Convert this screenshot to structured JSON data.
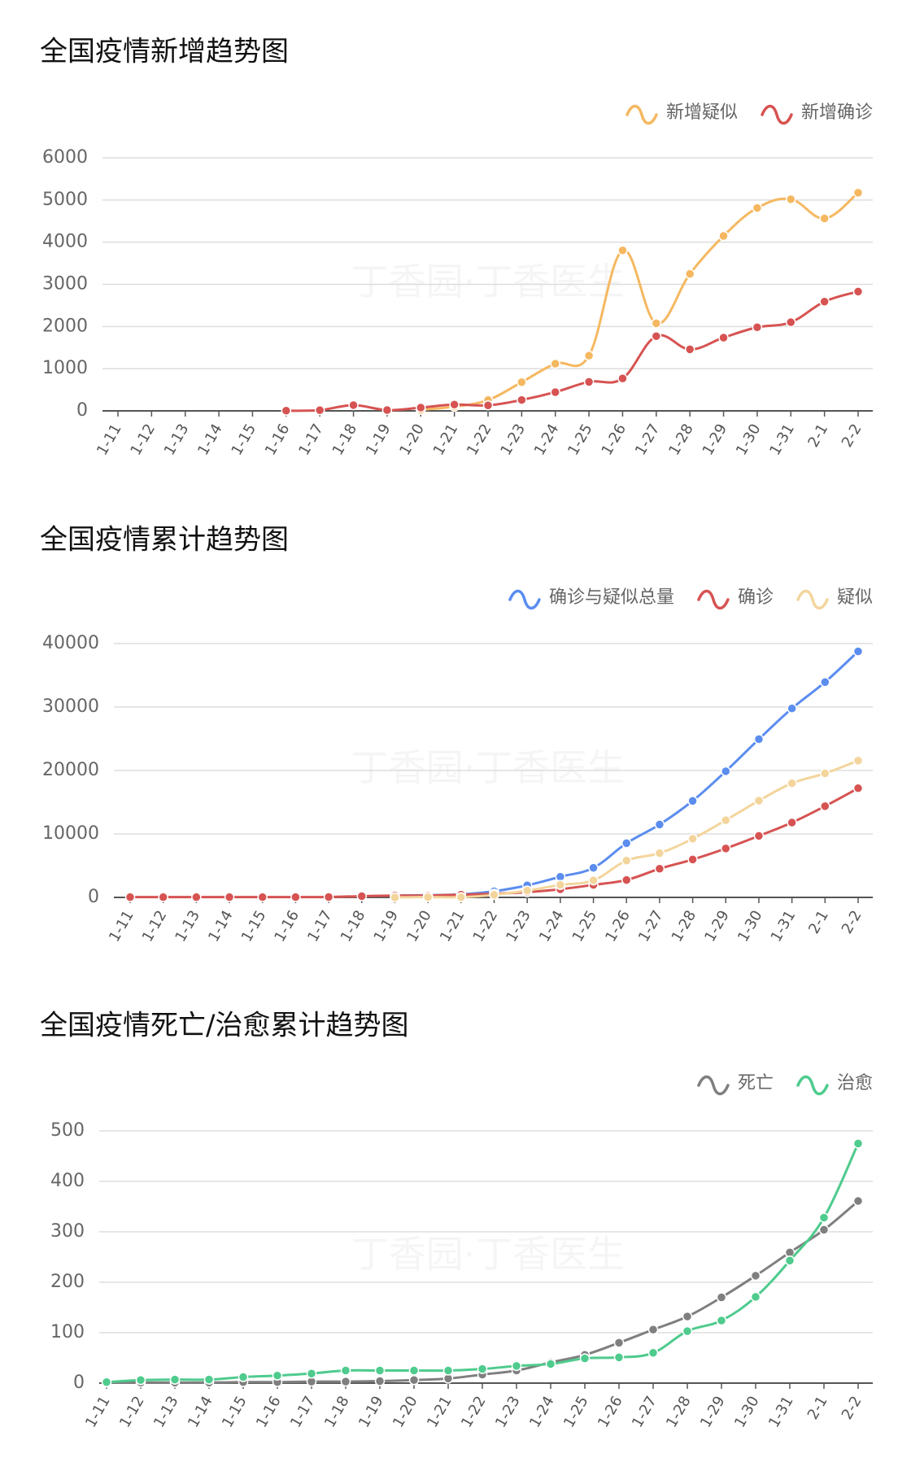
{
  "watermark": "丁香园·丁香医生",
  "chart_data": [
    {
      "type": "line",
      "title": "全国疫情新增趋势图",
      "categories": [
        "1-11",
        "1-12",
        "1-13",
        "1-14",
        "1-15",
        "1-16",
        "1-17",
        "1-18",
        "1-19",
        "1-20",
        "1-21",
        "1-22",
        "1-23",
        "1-24",
        "1-25",
        "1-26",
        "1-27",
        "1-28",
        "1-29",
        "1-30",
        "1-31",
        "2-1",
        "2-2"
      ],
      "series": [
        {
          "name": "新增疑似",
          "color": "#f5b860",
          "values": [
            null,
            null,
            null,
            null,
            null,
            null,
            null,
            null,
            null,
            27,
            100,
            257,
            680,
            1118,
            1309,
            3806,
            2077,
            3248,
            4148,
            4812,
            5019,
            4562,
            5173
          ]
        },
        {
          "name": "新增确诊",
          "color": "#d65352",
          "values": [
            null,
            null,
            null,
            null,
            null,
            4,
            17,
            136,
            19,
            77,
            149,
            131,
            259,
            444,
            688,
            769,
            1771,
            1459,
            1737,
            1982,
            2102,
            2590,
            2829
          ]
        }
      ],
      "ylim": [
        0,
        6000
      ],
      "yticks": [
        0,
        1000,
        2000,
        3000,
        4000,
        5000,
        6000
      ],
      "grid": true,
      "legend": "top-right"
    },
    {
      "type": "line",
      "title": "全国疫情累计趋势图",
      "categories": [
        "1-11",
        "1-12",
        "1-13",
        "1-14",
        "1-15",
        "1-16",
        "1-17",
        "1-18",
        "1-19",
        "1-20",
        "1-21",
        "1-22",
        "1-23",
        "1-24",
        "1-25",
        "1-26",
        "1-27",
        "1-28",
        "1-29",
        "1-30",
        "1-31",
        "2-1",
        "2-2"
      ],
      "series": [
        {
          "name": "确诊与疑似总量",
          "color": "#5b8def",
          "values": [
            null,
            null,
            null,
            null,
            null,
            null,
            null,
            null,
            291,
            345,
            477,
            964,
            1902,
            3252,
            4659,
            8538,
            11488,
            15213,
            19878,
            24930,
            29779,
            33924,
            38763
          ]
        },
        {
          "name": "确诊",
          "color": "#d65352",
          "values": [
            41,
            41,
            41,
            41,
            41,
            45,
            62,
            198,
            291,
            291,
            440,
            571,
            830,
            1287,
            1975,
            2744,
            4515,
            5974,
            7711,
            9692,
            11791,
            14380,
            17205
          ]
        },
        {
          "name": "疑似",
          "color": "#f3d59c",
          "values": [
            null,
            null,
            null,
            null,
            null,
            null,
            null,
            null,
            0,
            54,
            37,
            393,
            1072,
            1965,
            2684,
            5794,
            6973,
            9239,
            12167,
            15238,
            17988,
            19544,
            21558
          ]
        }
      ],
      "ylim": [
        0,
        40000
      ],
      "yticks": [
        0,
        10000,
        20000,
        30000,
        40000
      ],
      "grid": true,
      "legend": "top-right"
    },
    {
      "type": "line",
      "title": "全国疫情死亡/治愈累计趋势图",
      "categories": [
        "1-11",
        "1-12",
        "1-13",
        "1-14",
        "1-15",
        "1-16",
        "1-17",
        "1-18",
        "1-19",
        "1-20",
        "1-21",
        "1-22",
        "1-23",
        "1-24",
        "1-25",
        "1-26",
        "1-27",
        "1-28",
        "1-29",
        "1-30",
        "1-31",
        "2-1",
        "2-2"
      ],
      "series": [
        {
          "name": "死亡",
          "color": "#7f7f7f",
          "values": [
            1,
            1,
            1,
            1,
            2,
            2,
            3,
            3,
            4,
            6,
            9,
            17,
            25,
            41,
            56,
            80,
            106,
            132,
            170,
            213,
            259,
            304,
            361
          ]
        },
        {
          "name": "治愈",
          "color": "#4ecb8d",
          "values": [
            2,
            6,
            7,
            7,
            12,
            15,
            19,
            25,
            25,
            25,
            25,
            28,
            34,
            38,
            49,
            51,
            60,
            103,
            124,
            171,
            243,
            328,
            475
          ]
        }
      ],
      "ylim": [
        0,
        500
      ],
      "yticks": [
        0,
        100,
        200,
        300,
        400,
        500
      ],
      "grid": true,
      "legend": "top-right"
    }
  ]
}
